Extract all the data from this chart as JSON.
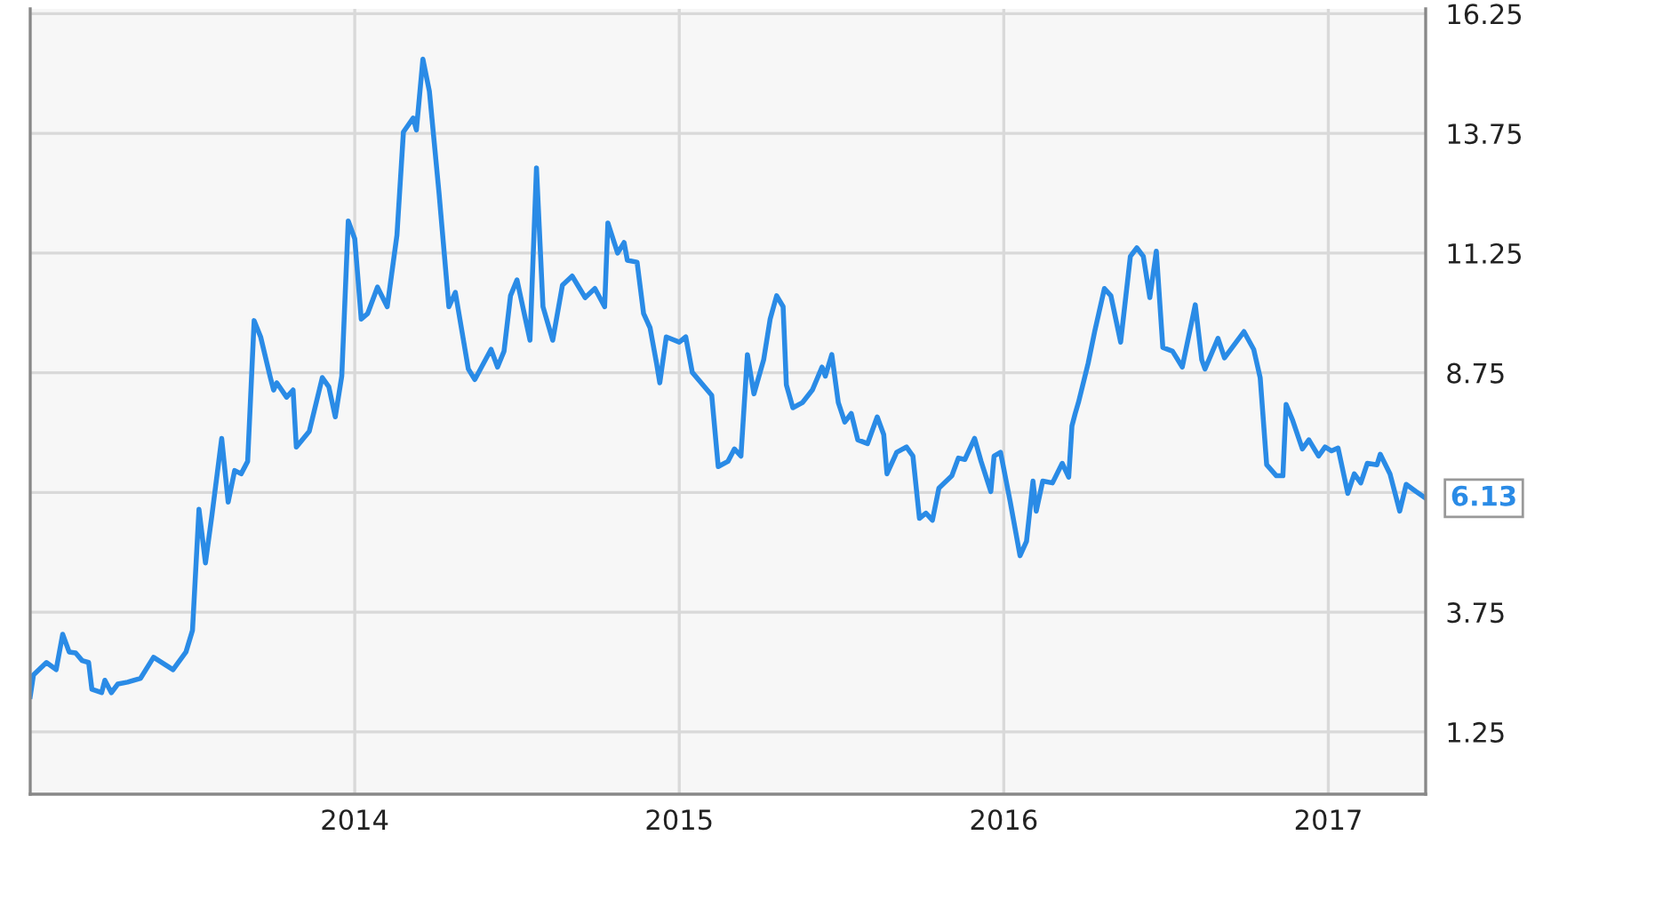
{
  "chart_data": {
    "type": "line",
    "x": [
      2013.0,
      2013.01,
      2013.05,
      2013.08,
      2013.1,
      2013.12,
      2013.14,
      2013.16,
      2013.18,
      2013.19,
      2013.22,
      2013.23,
      2013.25,
      2013.27,
      2013.3,
      2013.34,
      2013.38,
      2013.44,
      2013.48,
      2013.5,
      2013.52,
      2013.54,
      2013.56,
      2013.59,
      2013.61,
      2013.63,
      2013.65,
      2013.67,
      2013.69,
      2013.71,
      2013.74,
      2013.75,
      2013.76,
      2013.79,
      2013.81,
      2013.82,
      2013.86,
      2013.9,
      2013.92,
      2013.94,
      2013.96,
      2013.98,
      2014.0,
      2014.02,
      2014.04,
      2014.07,
      2014.1,
      2014.13,
      2014.15,
      2014.18,
      2014.19,
      2014.21,
      2014.23,
      2014.26,
      2014.29,
      2014.31,
      2014.35,
      2014.37,
      2014.42,
      2014.44,
      2014.46,
      2014.48,
      2014.5,
      2014.54,
      2014.56,
      2014.58,
      2014.61,
      2014.64,
      2014.67,
      2014.71,
      2014.74,
      2014.77,
      2014.78,
      2014.81,
      2014.83,
      2014.84,
      2014.87,
      2014.89,
      2014.91,
      2014.93,
      2014.94,
      2014.96,
      2015.0,
      2015.02,
      2015.04,
      2015.1,
      2015.12,
      2015.15,
      2015.17,
      2015.19,
      2015.21,
      2015.23,
      2015.26,
      2015.28,
      2015.3,
      2015.32,
      2015.33,
      2015.35,
      2015.38,
      2015.41,
      2015.44,
      2015.45,
      2015.47,
      2015.49,
      2015.51,
      2015.53,
      2015.55,
      2015.58,
      2015.61,
      2015.63,
      2015.64,
      2015.67,
      2015.7,
      2015.72,
      2015.74,
      2015.76,
      2015.78,
      2015.8,
      2015.84,
      2015.86,
      2015.88,
      2015.91,
      2015.93,
      2015.96,
      2015.97,
      2015.99,
      2016.02,
      2016.05,
      2016.07,
      2016.09,
      2016.1,
      2016.12,
      2016.15,
      2016.18,
      2016.2,
      2016.21,
      2016.22,
      2016.23,
      2016.26,
      2016.28,
      2016.31,
      2016.33,
      2016.36,
      2016.39,
      2016.41,
      2016.43,
      2016.45,
      2016.47,
      2016.49,
      2016.52,
      2016.55,
      2016.59,
      2016.61,
      2016.62,
      2016.66,
      2016.68,
      2016.74,
      2016.77,
      2016.79,
      2016.81,
      2016.84,
      2016.86,
      2016.87,
      2016.89,
      2016.92,
      2016.94,
      2016.97,
      2016.99,
      2017.01,
      2017.03,
      2017.06,
      2017.08,
      2017.1,
      2017.12,
      2017.15,
      2017.16,
      2017.19,
      2017.22,
      2017.24,
      2017.27,
      2017.3
    ],
    "series": [
      {
        "color": "#2a8be6",
        "values": [
          1.99,
          2.44,
          2.7,
          2.55,
          3.29,
          2.92,
          2.9,
          2.74,
          2.7,
          2.14,
          2.07,
          2.33,
          2.07,
          2.25,
          2.29,
          2.37,
          2.81,
          2.55,
          2.92,
          3.37,
          5.9,
          4.78,
          5.78,
          7.38,
          6.05,
          6.71,
          6.64,
          6.9,
          9.84,
          9.5,
          8.65,
          8.39,
          8.54,
          8.24,
          8.39,
          7.2,
          7.53,
          8.65,
          8.46,
          7.83,
          8.68,
          11.92,
          11.55,
          9.87,
          9.99,
          10.54,
          10.13,
          11.62,
          13.78,
          14.07,
          13.82,
          15.3,
          14.63,
          12.48,
          10.13,
          10.43,
          8.83,
          8.61,
          9.24,
          8.87,
          9.2,
          10.36,
          10.69,
          9.43,
          13.03,
          10.13,
          9.43,
          10.58,
          10.77,
          10.32,
          10.51,
          10.13,
          11.88,
          11.25,
          11.47,
          11.1,
          11.06,
          9.99,
          9.69,
          8.95,
          8.54,
          9.5,
          9.39,
          9.5,
          8.76,
          8.28,
          6.79,
          6.9,
          7.16,
          7.01,
          9.13,
          8.31,
          9.02,
          9.87,
          10.36,
          10.13,
          8.5,
          8.02,
          8.13,
          8.39,
          8.87,
          8.68,
          9.13,
          8.13,
          7.72,
          7.9,
          7.35,
          7.27,
          7.83,
          7.46,
          6.64,
          7.09,
          7.2,
          7.01,
          5.71,
          5.82,
          5.67,
          6.34,
          6.6,
          6.97,
          6.94,
          7.38,
          6.9,
          6.27,
          7.01,
          7.09,
          6.05,
          4.93,
          5.23,
          6.49,
          5.86,
          6.49,
          6.45,
          6.86,
          6.57,
          7.64,
          7.9,
          8.13,
          8.95,
          9.61,
          10.51,
          10.36,
          9.39,
          11.18,
          11.36,
          11.18,
          10.32,
          11.29,
          9.28,
          9.2,
          8.87,
          10.17,
          9.02,
          8.83,
          9.47,
          9.06,
          9.61,
          9.24,
          8.65,
          6.83,
          6.6,
          6.6,
          8.09,
          7.76,
          7.16,
          7.35,
          7.01,
          7.2,
          7.12,
          7.18,
          6.23,
          6.64,
          6.45,
          6.86,
          6.83,
          7.05,
          6.64,
          5.86,
          6.42,
          6.27,
          6.13
        ]
      }
    ],
    "xlim": [
      2013.0,
      2017.3
    ],
    "xticks": [
      2014,
      2015,
      2016,
      2017
    ],
    "ylim": [
      -0.05,
      16.35
    ],
    "yticks": [
      1.25,
      3.75,
      {
        "value": 6.25,
        "label": null
      },
      8.75,
      11.25,
      13.75,
      16.25
    ],
    "grid": true,
    "annotations": [
      {
        "text": "6.13",
        "x": 2017.3,
        "y": 6.13
      }
    ]
  }
}
